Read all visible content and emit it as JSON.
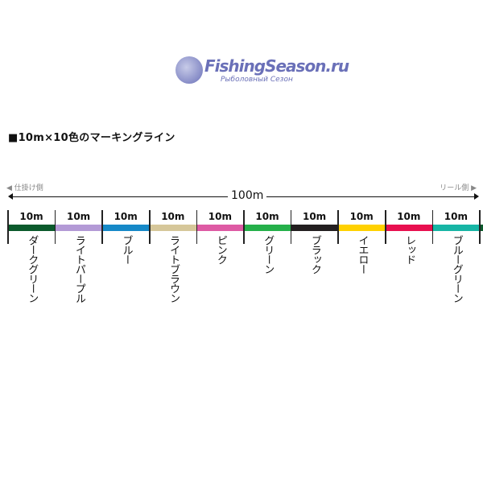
{
  "title": "■10m×10色のマーキングライン",
  "left_side_label": "◀ 仕掛け側",
  "right_side_label": "リール側 ▶",
  "total_length": "100m",
  "segments": [
    {
      "length": "10m",
      "name": "ダークグリーン",
      "color": "#0b5a2c"
    },
    {
      "length": "10m",
      "name": "ライトパープル",
      "color": "#b39ad6"
    },
    {
      "length": "10m",
      "name": "ブルー",
      "color": "#1689c8"
    },
    {
      "length": "10m",
      "name": "ライトブラウン",
      "color": "#d6c79a"
    },
    {
      "length": "10m",
      "name": "ピンク",
      "color": "#de5aa4"
    },
    {
      "length": "10m",
      "name": "グリーン",
      "color": "#25b04a"
    },
    {
      "length": "10m",
      "name": "ブラック",
      "color": "#231f20"
    },
    {
      "length": "10m",
      "name": "イエロー",
      "color": "#ffd100"
    },
    {
      "length": "10m",
      "name": "レッド",
      "color": "#e8104f"
    },
    {
      "length": "10m",
      "name": "ブルーグリーン",
      "color": "#17b5a5"
    }
  ],
  "watermark": {
    "line1": "FishingSeason.ru",
    "line2": "Рыболовный Сезон"
  }
}
